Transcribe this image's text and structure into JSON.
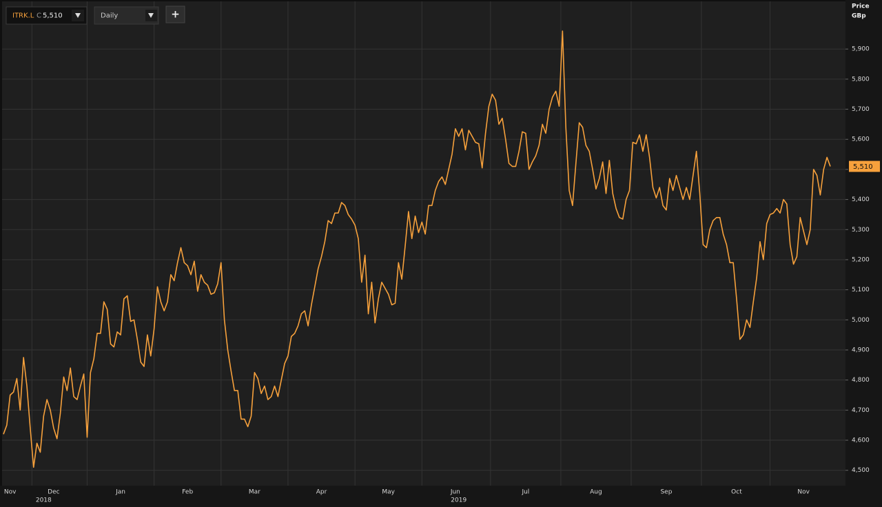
{
  "chart_data": {
    "type": "line",
    "toolbar": {
      "close_prefix": "C",
      "close": "5,510",
      "interval": "Daily",
      "add": "+"
    },
    "axis_title": "Price",
    "axis_unit": "GBp",
    "categories": [
      null,
      null,
      "Nov",
      null,
      null,
      null,
      null,
      null,
      null,
      null,
      null,
      null,
      null,
      null,
      null,
      "Dec",
      null,
      null,
      null,
      null,
      null,
      null,
      null,
      null,
      null,
      null,
      null,
      null,
      null,
      null,
      null,
      null,
      null,
      null,
      null,
      "Jan",
      null,
      null,
      null,
      null,
      null,
      null,
      null,
      null,
      null,
      null,
      null,
      null,
      null,
      null,
      null,
      null,
      null,
      null,
      null,
      "Feb",
      null,
      null,
      null,
      null,
      null,
      null,
      null,
      null,
      null,
      null,
      null,
      null,
      null,
      null,
      null,
      null,
      null,
      null,
      null,
      "Mar",
      null,
      null,
      null,
      null,
      null,
      null,
      null,
      null,
      null,
      null,
      null,
      null,
      null,
      null,
      null,
      null,
      null,
      null,
      null,
      "Apr",
      null,
      null,
      null,
      null,
      null,
      null,
      null,
      null,
      null,
      null,
      null,
      null,
      null,
      null,
      null,
      null,
      null,
      null,
      null,
      "May",
      null,
      null,
      null,
      null,
      null,
      null,
      null,
      null,
      null,
      null,
      null,
      null,
      null,
      null,
      null,
      null,
      null,
      null,
      null,
      "Jun",
      null,
      null,
      null,
      null,
      null,
      null,
      null,
      null,
      null,
      null,
      null,
      null,
      null,
      null,
      null,
      null,
      null,
      null,
      null,
      null,
      "Jul",
      null,
      null,
      null,
      null,
      null,
      null,
      null,
      null,
      null,
      null,
      null,
      null,
      null,
      null,
      null,
      null,
      null,
      null,
      null,
      null,
      "Aug",
      null,
      null,
      null,
      null,
      null,
      null,
      null,
      null,
      null,
      null,
      null,
      null,
      null,
      null,
      null,
      null,
      null,
      null,
      null,
      null,
      "Sep",
      null,
      null,
      null,
      null,
      null,
      null,
      null,
      null,
      null,
      null,
      null,
      null,
      null,
      null,
      null,
      null,
      null,
      null,
      null,
      null,
      "Oct",
      null,
      null,
      null,
      null,
      null,
      null,
      null,
      null,
      null,
      null,
      null,
      null,
      null,
      null,
      null,
      null,
      null,
      null,
      null,
      "Nov",
      null,
      null,
      null,
      null,
      null,
      null,
      null,
      null
    ],
    "year_categories": [
      null,
      null,
      null,
      null,
      null,
      null,
      null,
      null,
      null,
      null,
      null,
      null,
      "2018",
      null,
      null,
      null,
      null,
      null,
      null,
      null,
      null,
      null,
      null,
      null,
      null,
      null,
      null,
      null,
      null,
      null,
      null,
      null,
      null,
      null,
      null,
      null,
      null,
      null,
      null,
      null,
      null,
      null,
      null,
      null,
      null,
      null,
      null,
      null,
      null,
      null,
      null,
      null,
      null,
      null,
      null,
      null,
      null,
      null,
      null,
      null,
      null,
      null,
      null,
      null,
      null,
      null,
      null,
      null,
      null,
      null,
      null,
      null,
      null,
      null,
      null,
      null,
      null,
      null,
      null,
      null,
      null,
      null,
      null,
      null,
      null,
      null,
      null,
      null,
      null,
      null,
      null,
      null,
      null,
      null,
      null,
      null,
      null,
      null,
      null,
      null,
      null,
      null,
      null,
      null,
      null,
      null,
      null,
      null,
      null,
      null,
      null,
      null,
      null,
      null,
      null,
      null,
      null,
      null,
      null,
      null,
      null,
      null,
      null,
      null,
      null,
      null,
      null,
      null,
      null,
      null,
      null,
      null,
      null,
      null,
      null,
      null,
      "2019",
      null,
      null,
      null,
      null,
      null,
      null,
      null,
      null,
      null,
      null,
      null,
      null,
      null,
      null,
      null,
      null,
      null,
      null,
      null,
      null,
      null,
      null,
      null,
      null,
      null,
      null,
      null,
      null,
      null,
      null,
      null,
      null,
      null,
      null,
      null,
      null,
      null,
      null,
      null,
      null,
      null,
      null,
      null,
      null,
      null,
      null,
      null,
      null,
      null,
      null,
      null,
      null,
      null,
      null,
      null,
      null,
      null,
      null,
      null,
      null,
      null,
      null,
      null,
      null,
      null,
      null,
      null,
      null,
      null,
      null,
      null,
      null,
      null,
      null,
      null,
      null,
      null,
      null,
      null,
      null,
      null,
      null,
      null,
      null,
      null,
      null,
      null,
      null,
      null,
      null,
      null,
      null,
      null,
      null,
      null,
      null,
      null,
      null,
      null,
      null,
      null,
      null,
      null,
      null,
      null,
      null,
      null,
      null,
      null,
      null,
      null
    ],
    "series": [
      {
        "name": "ITRK.L",
        "color": "#f7a13c",
        "values": [
          4620,
          4650,
          4750,
          4760,
          4805,
          4700,
          4875,
          4780,
          4640,
          4510,
          4590,
          4560,
          4680,
          4735,
          4700,
          4640,
          4605,
          4690,
          4810,
          4765,
          4840,
          4745,
          4735,
          4780,
          4820,
          4610,
          4825,
          4870,
          4955,
          4955,
          5060,
          5035,
          4920,
          4910,
          4960,
          4950,
          5070,
          5080,
          4995,
          5000,
          4935,
          4860,
          4845,
          4950,
          4880,
          4970,
          5110,
          5060,
          5030,
          5060,
          5150,
          5130,
          5190,
          5240,
          5190,
          5180,
          5150,
          5195,
          5095,
          5150,
          5125,
          5115,
          5085,
          5090,
          5120,
          5190,
          5000,
          4900,
          4830,
          4765,
          4765,
          4670,
          4670,
          4645,
          4680,
          4825,
          4805,
          4755,
          4780,
          4735,
          4745,
          4780,
          4745,
          4800,
          4855,
          4880,
          4945,
          4955,
          4980,
          5020,
          5030,
          4980,
          5050,
          5110,
          5170,
          5210,
          5260,
          5330,
          5320,
          5355,
          5355,
          5390,
          5380,
          5350,
          5335,
          5315,
          5270,
          5125,
          5215,
          5020,
          5125,
          4990,
          5070,
          5125,
          5105,
          5085,
          5050,
          5055,
          5190,
          5135,
          5245,
          5360,
          5270,
          5345,
          5290,
          5325,
          5285,
          5380,
          5380,
          5430,
          5460,
          5475,
          5450,
          5500,
          5550,
          5635,
          5610,
          5635,
          5565,
          5630,
          5610,
          5590,
          5585,
          5505,
          5620,
          5710,
          5750,
          5730,
          5650,
          5670,
          5600,
          5520,
          5510,
          5510,
          5560,
          5625,
          5620,
          5500,
          5525,
          5545,
          5580,
          5650,
          5620,
          5700,
          5740,
          5760,
          5710,
          5960,
          5640,
          5430,
          5380,
          5520,
          5655,
          5640,
          5580,
          5560,
          5500,
          5435,
          5470,
          5525,
          5420,
          5530,
          5420,
          5370,
          5340,
          5335,
          5400,
          5430,
          5590,
          5585,
          5615,
          5560,
          5615,
          5540,
          5440,
          5405,
          5440,
          5380,
          5365,
          5470,
          5430,
          5480,
          5440,
          5400,
          5440,
          5400,
          5480,
          5560,
          5420,
          5250,
          5240,
          5300,
          5330,
          5340,
          5340,
          5285,
          5250,
          5190,
          5190,
          5070,
          4935,
          4950,
          5000,
          4975,
          5060,
          5140,
          5260,
          5200,
          5320,
          5350,
          5355,
          5370,
          5355,
          5400,
          5385,
          5250,
          5185,
          5210,
          5340,
          5295,
          5250,
          5300,
          5500,
          5480,
          5415,
          5500,
          5540,
          5510
        ],
        "value_labels": [
          null,
          null,
          null,
          null,
          null,
          null,
          null,
          null,
          null,
          null,
          null,
          null,
          null,
          null,
          null,
          null,
          null,
          null,
          null,
          null,
          null,
          null,
          null,
          null,
          null,
          null,
          null,
          null,
          null,
          null,
          null,
          null,
          null,
          null,
          null,
          null,
          null,
          null,
          null,
          null,
          null,
          null,
          null,
          null,
          null,
          null,
          null,
          null,
          null,
          null,
          null,
          null,
          null,
          null,
          null,
          null,
          null,
          null,
          null,
          null,
          null,
          null,
          null,
          null,
          null,
          null,
          null,
          null,
          null,
          null,
          null,
          null,
          null,
          null,
          null,
          null,
          null,
          null,
          null,
          null,
          null,
          null,
          null,
          null,
          null,
          null,
          null,
          null,
          null,
          null,
          null,
          null,
          null,
          null,
          null,
          null,
          null,
          null,
          null,
          null,
          null,
          null,
          null,
          null,
          null,
          null,
          null,
          null,
          null,
          null,
          null,
          null,
          null,
          null,
          null,
          null,
          null,
          null,
          null,
          null,
          null,
          null,
          null,
          null,
          null,
          null,
          null,
          null,
          null,
          null,
          null,
          null,
          null,
          null,
          null,
          null,
          null,
          null,
          null,
          null,
          null,
          null,
          null,
          null,
          null,
          null,
          null,
          null,
          null,
          null,
          null,
          null,
          null,
          null,
          null,
          null,
          null,
          null,
          null,
          null,
          null,
          null,
          null,
          null,
          null,
          null,
          null,
          null,
          null,
          null,
          null,
          null,
          null,
          null,
          null,
          null,
          null,
          null,
          null,
          null,
          null,
          null,
          null,
          null,
          null,
          null,
          null,
          null,
          null,
          null,
          null,
          null,
          null,
          null,
          null,
          null,
          null,
          null,
          null,
          null,
          null,
          null,
          null,
          null,
          null,
          null,
          null,
          null,
          null,
          null,
          null,
          null,
          null,
          null,
          null,
          null,
          null,
          null,
          null,
          null,
          null,
          null,
          null,
          null,
          null,
          null,
          null,
          null,
          null,
          null,
          null,
          null,
          null,
          null,
          null,
          null,
          null,
          null,
          null,
          null,
          null,
          null,
          null,
          null,
          null,
          null,
          null,
          "5,510"
        ]
      }
    ],
    "ylim": [
      4449,
      6063
    ],
    "yticks": [
      {
        "value": 4500,
        "label": "4,500"
      },
      {
        "value": 4600,
        "label": "4,600"
      },
      {
        "value": 4700,
        "label": "4,700"
      },
      {
        "value": 4800,
        "label": "4,800"
      },
      {
        "value": 4900,
        "label": "4,900"
      },
      {
        "value": 5000,
        "label": "5,000"
      },
      {
        "value": 5100,
        "label": "5,100"
      },
      {
        "value": 5200,
        "label": "5,200"
      },
      {
        "value": 5300,
        "label": "5,300"
      },
      {
        "value": 5400,
        "label": "5,400"
      },
      {
        "value": 5500,
        "label": "5,500"
      },
      {
        "value": 5600,
        "label": "5,600"
      },
      {
        "value": 5700,
        "label": "5,700"
      },
      {
        "value": 5800,
        "label": "5,800"
      },
      {
        "value": 5900,
        "label": "5,900"
      }
    ],
    "grid": true
  }
}
